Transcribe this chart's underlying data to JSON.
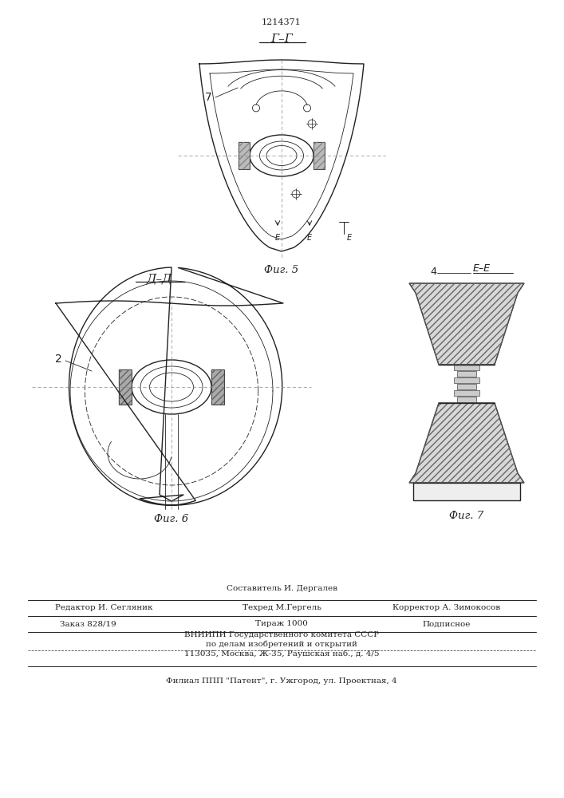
{
  "patent_number": "1214371",
  "background_color": "#ffffff",
  "line_color": "#222222",
  "fig5_label": "Фиг. 5",
  "fig6_label": "Фиг. 6",
  "fig7_label": "Фиг. 7",
  "section_g_label": "Г–Г",
  "section_d_label": "Д–Д",
  "section_e_label": "Е–Е",
  "label_7": "7",
  "label_2": "2",
  "label_4": "4",
  "footer_sestavitel": "Составитель И. Дергалев",
  "footer_redaktor": "Редактор И. Сегляник",
  "footer_tehred": "Техред М.Гергель",
  "footer_korrektor": "Корректор А. Зимокосов",
  "footer_zakaz": "Заказ 828/19",
  "footer_tirazh": "Тираж 1000",
  "footer_podpisnoe": "Подписное",
  "footer_vniipii": "ВНИИПИ Государственного комитета СССР",
  "footer_po_delam": "по делам изобретений и открытий",
  "footer_address": "113035, Москва, Ж-35, Раушская наб., д. 4/5",
  "footer_filial": "Филиал ППП \"Патент\", г. Ужгород, ул. Проектная, 4"
}
